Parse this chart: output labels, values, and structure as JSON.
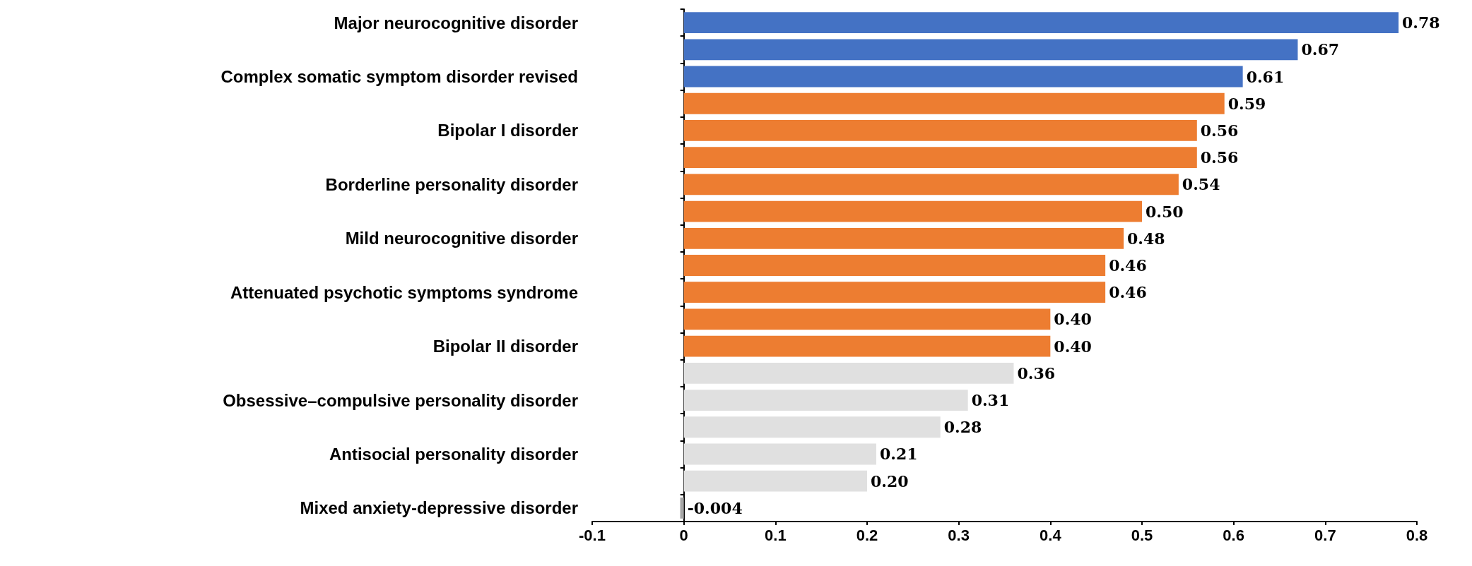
{
  "chart_data": {
    "type": "bar",
    "orientation": "horizontal",
    "categories": [
      "Major neurocognitive disorder",
      null,
      "Complex somatic symptom disorder revised",
      null,
      "Bipolar I disorder",
      null,
      "Borderline personality disorder",
      null,
      "Mild neurocognitive disorder",
      null,
      "Attenuated psychotic symptoms syndrome",
      null,
      "Bipolar II disorder",
      null,
      "Obsessive–compulsive personality disorder",
      null,
      "Antisocial personality disorder",
      null,
      "Mixed anxiety-depressive disorder"
    ],
    "values": [
      0.78,
      0.67,
      0.61,
      0.59,
      0.56,
      0.56,
      0.54,
      0.5,
      0.48,
      0.46,
      0.46,
      0.4,
      0.4,
      0.36,
      0.31,
      0.28,
      0.21,
      0.2,
      -0.004
    ],
    "value_labels": [
      "0.78",
      "0.67",
      "0.61",
      "0.59",
      "0.56",
      "0.56",
      "0.54",
      "0.50",
      "0.48",
      "0.46",
      "0.46",
      "0.40",
      "0.40",
      "0.36",
      "0.31",
      "0.28",
      "0.21",
      "0.20",
      "-0.004"
    ],
    "colors": [
      "#4472c4",
      "#4472c4",
      "#4472c4",
      "#ed7d31",
      "#ed7d31",
      "#ed7d31",
      "#ed7d31",
      "#ed7d31",
      "#ed7d31",
      "#ed7d31",
      "#ed7d31",
      "#ed7d31",
      "#ed7d31",
      "#e0e0e0",
      "#e0e0e0",
      "#e0e0e0",
      "#e0e0e0",
      "#e0e0e0",
      "#a6a6a6"
    ],
    "xlim": [
      -0.1,
      0.8
    ],
    "xticks": [
      {
        "value": -0.1,
        "label": "-0.1"
      },
      0,
      0.1,
      0.2,
      0.3,
      0.4,
      0.5,
      0.6,
      0.7,
      0.8
    ]
  }
}
